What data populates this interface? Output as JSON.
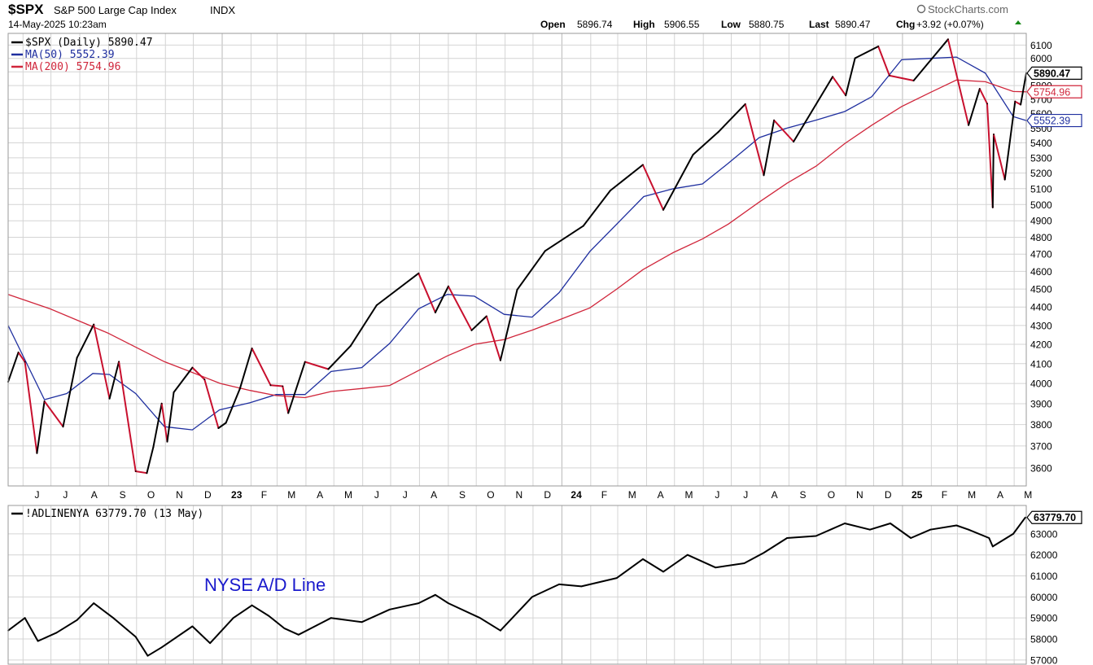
{
  "header": {
    "symbol": "$SPX",
    "name": "S&P 500 Large Cap Index",
    "exchange": "INDX",
    "datetime": "14-May-2025 10:23am",
    "brand": "StockCharts.com",
    "open_label": "Open",
    "open": "5896.74",
    "high_label": "High",
    "high": "5906.55",
    "low_label": "Low",
    "low": "5880.75",
    "last_label": "Last",
    "last": "5890.47",
    "chg_label": "Chg",
    "chg": "+3.92 (+0.07%)"
  },
  "colors": {
    "price_up": "#000000",
    "price_down": "#c8102e",
    "ma50": "#1f2f9f",
    "ma200": "#d0263b",
    "adline": "#000000",
    "annotation": "#1a1acc",
    "grid": "#d4d4d4",
    "up_arrow": "#1a8a1a"
  },
  "chart_data": [
    {
      "type": "line",
      "panel": "price",
      "legend": [
        {
          "label": "$SPX (Daily) 5890.47",
          "color": "#000000"
        },
        {
          "label": "MA(50) 5552.39",
          "color": "#1f2f9f"
        },
        {
          "label": "MA(200) 5754.96",
          "color": "#d0263b"
        }
      ],
      "end_labels": [
        {
          "text": "5890.47",
          "value": 5890.47,
          "color": "#000000",
          "bold": true
        },
        {
          "text": "5754.96",
          "value": 5754.96,
          "color": "#d0263b",
          "bold": false
        },
        {
          "text": "5552.39",
          "value": 5552.39,
          "color": "#1f2f9f",
          "bold": false
        }
      ],
      "y_ticks": [
        3600,
        3700,
        3800,
        3900,
        4000,
        4100,
        4200,
        4300,
        4400,
        4500,
        4600,
        4700,
        4800,
        4900,
        5000,
        5100,
        5200,
        5300,
        5400,
        5500,
        5600,
        5700,
        5800,
        5900,
        6000,
        6100
      ],
      "y_scale": "log",
      "ylim": [
        3520,
        6190
      ],
      "x_ticks": [
        "J",
        "J",
        "A",
        "S",
        "O",
        "N",
        "D",
        "23",
        "F",
        "M",
        "A",
        "M",
        "J",
        "J",
        "A",
        "S",
        "O",
        "N",
        "D",
        "24",
        "F",
        "M",
        "A",
        "M",
        "J",
        "J",
        "A",
        "S",
        "O",
        "N",
        "D",
        "25",
        "F",
        "M",
        "A",
        "M"
      ],
      "x_ticks_bold": [
        "23",
        "24",
        "25"
      ],
      "x_range": [
        "2022-05-16",
        "2025-05-14"
      ],
      "series": [
        {
          "name": "$SPX",
          "key": "price",
          "x": [
            "2022-05-16",
            "2022-05-27",
            "2022-06-03",
            "2022-06-16",
            "2022-06-24",
            "2022-07-14",
            "2022-07-29",
            "2022-08-16",
            "2022-09-02",
            "2022-09-12",
            "2022-09-30",
            "2022-10-12",
            "2022-10-19",
            "2022-10-28",
            "2022-11-03",
            "2022-11-10",
            "2022-11-30",
            "2022-12-13",
            "2022-12-28",
            "2023-01-05",
            "2023-01-20",
            "2023-02-02",
            "2023-02-22",
            "2023-03-07",
            "2023-03-13",
            "2023-03-31",
            "2023-04-25",
            "2023-05-19",
            "2023-06-16",
            "2023-07-31",
            "2023-08-18",
            "2023-09-01",
            "2023-09-26",
            "2023-10-12",
            "2023-10-27",
            "2023-11-14",
            "2023-12-14",
            "2024-01-24",
            "2024-02-22",
            "2024-03-28",
            "2024-04-19",
            "2024-05-21",
            "2024-06-17",
            "2024-07-16",
            "2024-08-05",
            "2024-08-16",
            "2024-09-06",
            "2024-10-18",
            "2024-11-01",
            "2024-11-11",
            "2024-12-06",
            "2024-12-18",
            "2025-01-13",
            "2025-02-19",
            "2025-03-13",
            "2025-03-25",
            "2025-04-02",
            "2025-04-08",
            "2025-04-09",
            "2025-04-21",
            "2025-05-02",
            "2025-05-08",
            "2025-05-14"
          ],
          "values": [
            4008,
            4158,
            4109,
            3667,
            3912,
            3790,
            4130,
            4305,
            3925,
            4110,
            3585,
            3577,
            3695,
            3901,
            3720,
            3956,
            4080,
            4020,
            3783,
            3808,
            3973,
            4179,
            3991,
            3986,
            3855,
            4109,
            4072,
            4192,
            4410,
            4589,
            4370,
            4515,
            4274,
            4350,
            4117,
            4496,
            4719,
            4868,
            5088,
            5254,
            4967,
            5321,
            5473,
            5667,
            5186,
            5554,
            5408,
            5864,
            5729,
            6001,
            6090,
            5872,
            5836,
            6144,
            5521,
            5776,
            5670,
            4982,
            5457,
            5158,
            5686,
            5664,
            5890
          ]
        },
        {
          "name": "MA(50)",
          "key": "ma50",
          "x": [
            "2022-05-16",
            "2022-06-24",
            "2022-07-18",
            "2022-08-15",
            "2022-09-02",
            "2022-09-30",
            "2022-10-31",
            "2022-11-30",
            "2022-12-29",
            "2023-01-31",
            "2023-02-28",
            "2023-03-31",
            "2023-04-28",
            "2023-05-31",
            "2023-06-30",
            "2023-07-31",
            "2023-08-31",
            "2023-09-29",
            "2023-10-31",
            "2023-11-30",
            "2023-12-29",
            "2024-01-31",
            "2024-03-29",
            "2024-04-30",
            "2024-05-31",
            "2024-06-28",
            "2024-07-31",
            "2024-08-30",
            "2024-09-30",
            "2024-10-31",
            "2024-11-29",
            "2024-12-31",
            "2025-01-31",
            "2025-02-28",
            "2025-03-31",
            "2025-04-30",
            "2025-05-14"
          ],
          "values": [
            4300,
            3920,
            3950,
            4050,
            4045,
            3950,
            3790,
            3775,
            3870,
            3905,
            3945,
            3945,
            4060,
            4080,
            4205,
            4390,
            4470,
            4460,
            4360,
            4345,
            4480,
            4715,
            5050,
            5100,
            5130,
            5265,
            5435,
            5500,
            5555,
            5615,
            5720,
            5990,
            6000,
            6010,
            5890,
            5580,
            5552.39
          ]
        },
        {
          "name": "MA(200)",
          "key": "ma200",
          "x": [
            "2022-05-16",
            "2022-06-30",
            "2022-08-31",
            "2022-10-31",
            "2022-11-30",
            "2022-12-30",
            "2023-01-31",
            "2023-02-28",
            "2023-03-31",
            "2023-04-28",
            "2023-05-31",
            "2023-06-30",
            "2023-07-31",
            "2023-08-31",
            "2023-09-29",
            "2023-10-31",
            "2023-11-30",
            "2023-12-29",
            "2024-01-31",
            "2024-02-29",
            "2024-03-28",
            "2024-04-30",
            "2024-05-31",
            "2024-06-28",
            "2024-07-31",
            "2024-08-30",
            "2024-09-30",
            "2024-10-31",
            "2024-11-29",
            "2024-12-31",
            "2025-01-31",
            "2025-02-28",
            "2025-03-31",
            "2025-04-30",
            "2025-05-14"
          ],
          "values": [
            4470,
            4390,
            4260,
            4110,
            4055,
            4000,
            3965,
            3940,
            3930,
            3960,
            3975,
            3990,
            4065,
            4140,
            4200,
            4225,
            4275,
            4330,
            4395,
            4500,
            4610,
            4710,
            4790,
            4880,
            5015,
            5135,
            5245,
            5395,
            5520,
            5650,
            5750,
            5840,
            5828,
            5757,
            5754.96
          ]
        }
      ]
    },
    {
      "type": "line",
      "panel": "breadth",
      "legend": [
        {
          "label": "!ADLINENYA 63779.70 (13 May)",
          "color": "#000000"
        }
      ],
      "end_labels": [
        {
          "text": "63779.70",
          "value": 63779.7,
          "color": "#000000",
          "bold": true
        }
      ],
      "annotation": "NYSE A/D Line",
      "y_ticks": [
        57000,
        58000,
        59000,
        60000,
        61000,
        62000,
        63000
      ],
      "ylim": [
        56800,
        64350
      ],
      "x_range": [
        "2022-05-16",
        "2025-05-14"
      ],
      "series": [
        {
          "name": "!ADLINENYA",
          "key": "adline",
          "x": [
            "2022-05-16",
            "2022-06-03",
            "2022-06-17",
            "2022-07-07",
            "2022-07-29",
            "2022-08-16",
            "2022-09-06",
            "2022-09-30",
            "2022-10-13",
            "2022-10-28",
            "2022-11-30",
            "2022-12-19",
            "2023-01-13",
            "2023-02-02",
            "2023-02-20",
            "2023-03-09",
            "2023-03-24",
            "2023-04-28",
            "2023-05-31",
            "2023-06-30",
            "2023-07-31",
            "2023-08-18",
            "2023-09-01",
            "2023-10-05",
            "2023-10-27",
            "2023-11-30",
            "2023-12-29",
            "2024-01-22",
            "2024-02-29",
            "2024-03-28",
            "2024-04-19",
            "2024-05-15",
            "2024-06-14",
            "2024-07-15",
            "2024-08-05",
            "2024-08-30",
            "2024-09-30",
            "2024-10-31",
            "2024-11-27",
            "2024-12-19",
            "2025-01-10",
            "2025-01-31",
            "2025-02-28",
            "2025-03-13",
            "2025-04-04",
            "2025-04-08",
            "2025-04-30",
            "2025-05-13"
          ],
          "values": [
            58400,
            59000,
            57900,
            58300,
            58900,
            59700,
            59000,
            58100,
            57200,
            57600,
            58600,
            57800,
            59000,
            59600,
            59100,
            58500,
            58200,
            59000,
            58800,
            59400,
            59700,
            60100,
            59700,
            59000,
            58400,
            60000,
            60600,
            60500,
            60900,
            61800,
            61200,
            62000,
            61400,
            61600,
            62100,
            62800,
            62900,
            63500,
            63200,
            63500,
            62800,
            63200,
            63400,
            63200,
            62800,
            62400,
            63000,
            63780
          ]
        }
      ]
    }
  ]
}
